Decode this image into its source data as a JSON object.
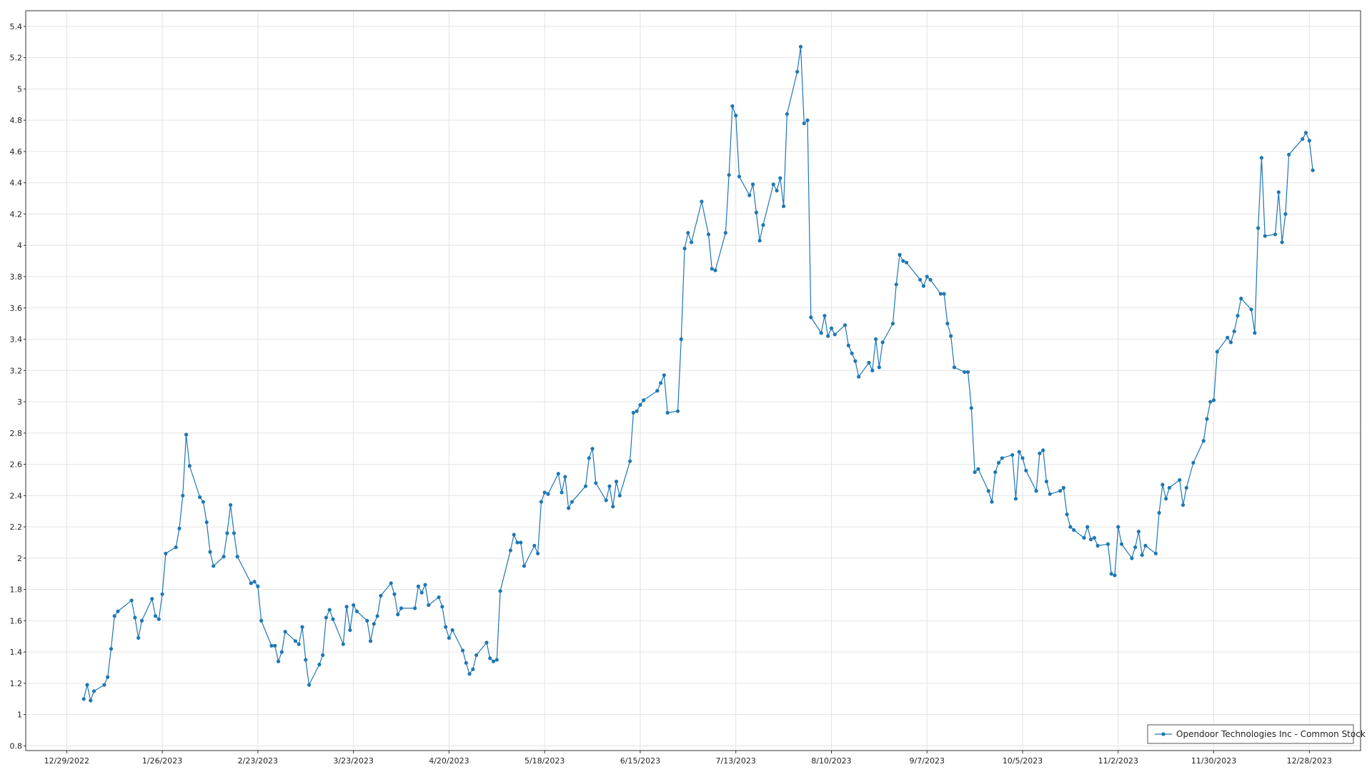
{
  "chart_data": {
    "type": "line",
    "title": "",
    "xlabel": "",
    "ylabel": "",
    "x_tick_labels": [
      "12/29/2022",
      "1/26/2023",
      "2/23/2023",
      "3/23/2023",
      "4/20/2023",
      "5/18/2023",
      "6/15/2023",
      "7/13/2023",
      "8/10/2023",
      "9/7/2023",
      "10/5/2023",
      "11/2/2023",
      "11/30/2023",
      "12/28/2023"
    ],
    "x_ticks": [
      "2022-12-29",
      "2023-01-26",
      "2023-02-23",
      "2023-03-23",
      "2023-04-20",
      "2023-05-18",
      "2023-06-15",
      "2023-07-13",
      "2023-08-10",
      "2023-09-07",
      "2023-10-05",
      "2023-11-02",
      "2023-11-30",
      "2023-12-28"
    ],
    "xlim": [
      "2022-12-17",
      "2024-01-12"
    ],
    "y_tick_labels": [
      "0.8",
      "1",
      "1.2",
      "1.4",
      "1.6",
      "1.8",
      "2",
      "2.2",
      "2.4",
      "2.6",
      "2.8",
      "3",
      "3.2",
      "3.4",
      "3.6",
      "3.8",
      "4",
      "4.2",
      "4.4",
      "4.6",
      "4.8",
      "5",
      "5.2",
      "5.4"
    ],
    "ylim": [
      0.77,
      5.5
    ],
    "grid": true,
    "legend": "bottom-right",
    "series": [
      {
        "name": "Opendoor Technologies Inc  - Common Stock",
        "color": "#1f77b4",
        "points": [
          [
            "2023-01-03",
            1.1
          ],
          [
            "2023-01-04",
            1.19
          ],
          [
            "2023-01-05",
            1.09
          ],
          [
            "2023-01-06",
            1.15
          ],
          [
            "2023-01-09",
            1.19
          ],
          [
            "2023-01-10",
            1.24
          ],
          [
            "2023-01-11",
            1.42
          ],
          [
            "2023-01-12",
            1.63
          ],
          [
            "2023-01-13",
            1.66
          ],
          [
            "2023-01-17",
            1.73
          ],
          [
            "2023-01-18",
            1.62
          ],
          [
            "2023-01-19",
            1.49
          ],
          [
            "2023-01-20",
            1.6
          ],
          [
            "2023-01-23",
            1.74
          ],
          [
            "2023-01-24",
            1.63
          ],
          [
            "2023-01-25",
            1.61
          ],
          [
            "2023-01-26",
            1.77
          ],
          [
            "2023-01-27",
            2.03
          ],
          [
            "2023-01-30",
            2.07
          ],
          [
            "2023-01-31",
            2.19
          ],
          [
            "2023-02-01",
            2.4
          ],
          [
            "2023-02-02",
            2.79
          ],
          [
            "2023-02-03",
            2.59
          ],
          [
            "2023-02-06",
            2.39
          ],
          [
            "2023-02-07",
            2.36
          ],
          [
            "2023-02-08",
            2.23
          ],
          [
            "2023-02-09",
            2.04
          ],
          [
            "2023-02-10",
            1.95
          ],
          [
            "2023-02-13",
            2.01
          ],
          [
            "2023-02-14",
            2.16
          ],
          [
            "2023-02-15",
            2.34
          ],
          [
            "2023-02-16",
            2.16
          ],
          [
            "2023-02-17",
            2.01
          ],
          [
            "2023-02-21",
            1.84
          ],
          [
            "2023-02-22",
            1.85
          ],
          [
            "2023-02-23",
            1.82
          ],
          [
            "2023-02-24",
            1.6
          ],
          [
            "2023-02-27",
            1.44
          ],
          [
            "2023-02-28",
            1.44
          ],
          [
            "2023-03-01",
            1.34
          ],
          [
            "2023-03-02",
            1.4
          ],
          [
            "2023-03-03",
            1.53
          ],
          [
            "2023-03-06",
            1.47
          ],
          [
            "2023-03-07",
            1.45
          ],
          [
            "2023-03-08",
            1.56
          ],
          [
            "2023-03-09",
            1.35
          ],
          [
            "2023-03-10",
            1.19
          ],
          [
            "2023-03-13",
            1.32
          ],
          [
            "2023-03-14",
            1.38
          ],
          [
            "2023-03-15",
            1.62
          ],
          [
            "2023-03-16",
            1.67
          ],
          [
            "2023-03-17",
            1.61
          ],
          [
            "2023-03-20",
            1.45
          ],
          [
            "2023-03-21",
            1.69
          ],
          [
            "2023-03-22",
            1.54
          ],
          [
            "2023-03-23",
            1.7
          ],
          [
            "2023-03-24",
            1.66
          ],
          [
            "2023-03-27",
            1.6
          ],
          [
            "2023-03-28",
            1.47
          ],
          [
            "2023-03-29",
            1.58
          ],
          [
            "2023-03-30",
            1.63
          ],
          [
            "2023-03-31",
            1.76
          ],
          [
            "2023-04-03",
            1.84
          ],
          [
            "2023-04-04",
            1.77
          ],
          [
            "2023-04-05",
            1.64
          ],
          [
            "2023-04-06",
            1.68
          ],
          [
            "2023-04-10",
            1.68
          ],
          [
            "2023-04-11",
            1.82
          ],
          [
            "2023-04-12",
            1.78
          ],
          [
            "2023-04-13",
            1.83
          ],
          [
            "2023-04-14",
            1.7
          ],
          [
            "2023-04-17",
            1.75
          ],
          [
            "2023-04-18",
            1.69
          ],
          [
            "2023-04-19",
            1.56
          ],
          [
            "2023-04-20",
            1.49
          ],
          [
            "2023-04-21",
            1.54
          ],
          [
            "2023-04-24",
            1.41
          ],
          [
            "2023-04-25",
            1.33
          ],
          [
            "2023-04-26",
            1.26
          ],
          [
            "2023-04-27",
            1.29
          ],
          [
            "2023-04-28",
            1.38
          ],
          [
            "2023-05-01",
            1.46
          ],
          [
            "2023-05-02",
            1.36
          ],
          [
            "2023-05-03",
            1.34
          ],
          [
            "2023-05-04",
            1.35
          ],
          [
            "2023-05-05",
            1.79
          ],
          [
            "2023-05-08",
            2.05
          ],
          [
            "2023-05-09",
            2.15
          ],
          [
            "2023-05-10",
            2.1
          ],
          [
            "2023-05-11",
            2.1
          ],
          [
            "2023-05-12",
            1.95
          ],
          [
            "2023-05-15",
            2.08
          ],
          [
            "2023-05-16",
            2.03
          ],
          [
            "2023-05-17",
            2.36
          ],
          [
            "2023-05-18",
            2.42
          ],
          [
            "2023-05-19",
            2.41
          ],
          [
            "2023-05-22",
            2.54
          ],
          [
            "2023-05-23",
            2.42
          ],
          [
            "2023-05-24",
            2.52
          ],
          [
            "2023-05-25",
            2.32
          ],
          [
            "2023-05-26",
            2.36
          ],
          [
            "2023-05-30",
            2.46
          ],
          [
            "2023-05-31",
            2.64
          ],
          [
            "2023-06-01",
            2.7
          ],
          [
            "2023-06-02",
            2.48
          ],
          [
            "2023-06-05",
            2.37
          ],
          [
            "2023-06-06",
            2.46
          ],
          [
            "2023-06-07",
            2.33
          ],
          [
            "2023-06-08",
            2.49
          ],
          [
            "2023-06-09",
            2.4
          ],
          [
            "2023-06-12",
            2.62
          ],
          [
            "2023-06-13",
            2.93
          ],
          [
            "2023-06-14",
            2.94
          ],
          [
            "2023-06-15",
            2.98
          ],
          [
            "2023-06-16",
            3.01
          ],
          [
            "2023-06-20",
            3.07
          ],
          [
            "2023-06-21",
            3.12
          ],
          [
            "2023-06-22",
            3.17
          ],
          [
            "2023-06-23",
            2.93
          ],
          [
            "2023-06-26",
            2.94
          ],
          [
            "2023-06-27",
            3.4
          ],
          [
            "2023-06-28",
            3.98
          ],
          [
            "2023-06-29",
            4.08
          ],
          [
            "2023-06-30",
            4.02
          ],
          [
            "2023-07-03",
            4.28
          ],
          [
            "2023-07-05",
            4.07
          ],
          [
            "2023-07-06",
            3.85
          ],
          [
            "2023-07-07",
            3.84
          ],
          [
            "2023-07-10",
            4.08
          ],
          [
            "2023-07-11",
            4.45
          ],
          [
            "2023-07-12",
            4.89
          ],
          [
            "2023-07-13",
            4.83
          ],
          [
            "2023-07-14",
            4.44
          ],
          [
            "2023-07-17",
            4.32
          ],
          [
            "2023-07-18",
            4.39
          ],
          [
            "2023-07-19",
            4.21
          ],
          [
            "2023-07-20",
            4.03
          ],
          [
            "2023-07-21",
            4.13
          ],
          [
            "2023-07-24",
            4.39
          ],
          [
            "2023-07-25",
            4.35
          ],
          [
            "2023-07-26",
            4.43
          ],
          [
            "2023-07-27",
            4.25
          ],
          [
            "2023-07-28",
            4.84
          ],
          [
            "2023-07-31",
            5.11
          ],
          [
            "2023-08-01",
            5.27
          ],
          [
            "2023-08-02",
            4.78
          ],
          [
            "2023-08-03",
            4.8
          ],
          [
            "2023-08-04",
            3.54
          ],
          [
            "2023-08-07",
            3.44
          ],
          [
            "2023-08-08",
            3.55
          ],
          [
            "2023-08-09",
            3.42
          ],
          [
            "2023-08-10",
            3.47
          ],
          [
            "2023-08-11",
            3.43
          ],
          [
            "2023-08-14",
            3.49
          ],
          [
            "2023-08-15",
            3.36
          ],
          [
            "2023-08-16",
            3.31
          ],
          [
            "2023-08-17",
            3.26
          ],
          [
            "2023-08-18",
            3.16
          ],
          [
            "2023-08-21",
            3.25
          ],
          [
            "2023-08-22",
            3.2
          ],
          [
            "2023-08-23",
            3.4
          ],
          [
            "2023-08-24",
            3.22
          ],
          [
            "2023-08-25",
            3.38
          ],
          [
            "2023-08-28",
            3.5
          ],
          [
            "2023-08-29",
            3.75
          ],
          [
            "2023-08-30",
            3.94
          ],
          [
            "2023-08-31",
            3.9
          ],
          [
            "2023-09-01",
            3.89
          ],
          [
            "2023-09-05",
            3.78
          ],
          [
            "2023-09-06",
            3.74
          ],
          [
            "2023-09-07",
            3.8
          ],
          [
            "2023-09-08",
            3.78
          ],
          [
            "2023-09-11",
            3.69
          ],
          [
            "2023-09-12",
            3.69
          ],
          [
            "2023-09-13",
            3.5
          ],
          [
            "2023-09-14",
            3.42
          ],
          [
            "2023-09-15",
            3.22
          ],
          [
            "2023-09-18",
            3.19
          ],
          [
            "2023-09-19",
            3.19
          ],
          [
            "2023-09-20",
            2.96
          ],
          [
            "2023-09-21",
            2.55
          ],
          [
            "2023-09-22",
            2.57
          ],
          [
            "2023-09-25",
            2.43
          ],
          [
            "2023-09-26",
            2.36
          ],
          [
            "2023-09-27",
            2.55
          ],
          [
            "2023-09-28",
            2.61
          ],
          [
            "2023-09-29",
            2.64
          ],
          [
            "2023-10-02",
            2.66
          ],
          [
            "2023-10-03",
            2.38
          ],
          [
            "2023-10-04",
            2.68
          ],
          [
            "2023-10-05",
            2.64
          ],
          [
            "2023-10-06",
            2.56
          ],
          [
            "2023-10-09",
            2.43
          ],
          [
            "2023-10-10",
            2.67
          ],
          [
            "2023-10-11",
            2.69
          ],
          [
            "2023-10-12",
            2.49
          ],
          [
            "2023-10-13",
            2.41
          ],
          [
            "2023-10-16",
            2.43
          ],
          [
            "2023-10-17",
            2.45
          ],
          [
            "2023-10-18",
            2.28
          ],
          [
            "2023-10-19",
            2.2
          ],
          [
            "2023-10-20",
            2.18
          ],
          [
            "2023-10-23",
            2.13
          ],
          [
            "2023-10-24",
            2.2
          ],
          [
            "2023-10-25",
            2.12
          ],
          [
            "2023-10-26",
            2.13
          ],
          [
            "2023-10-27",
            2.08
          ],
          [
            "2023-10-30",
            2.09
          ],
          [
            "2023-10-31",
            1.9
          ],
          [
            "2023-11-01",
            1.89
          ],
          [
            "2023-11-02",
            2.2
          ],
          [
            "2023-11-03",
            2.09
          ],
          [
            "2023-11-06",
            2.0
          ],
          [
            "2023-11-07",
            2.07
          ],
          [
            "2023-11-08",
            2.17
          ],
          [
            "2023-11-09",
            2.02
          ],
          [
            "2023-11-10",
            2.08
          ],
          [
            "2023-11-13",
            2.03
          ],
          [
            "2023-11-14",
            2.29
          ],
          [
            "2023-11-15",
            2.47
          ],
          [
            "2023-11-16",
            2.38
          ],
          [
            "2023-11-17",
            2.45
          ],
          [
            "2023-11-20",
            2.5
          ],
          [
            "2023-11-21",
            2.34
          ],
          [
            "2023-11-22",
            2.45
          ],
          [
            "2023-11-24",
            2.61
          ],
          [
            "2023-11-27",
            2.75
          ],
          [
            "2023-11-28",
            2.89
          ],
          [
            "2023-11-29",
            3.0
          ],
          [
            "2023-11-30",
            3.01
          ],
          [
            "2023-12-01",
            3.32
          ],
          [
            "2023-12-04",
            3.41
          ],
          [
            "2023-12-05",
            3.38
          ],
          [
            "2023-12-06",
            3.45
          ],
          [
            "2023-12-07",
            3.55
          ],
          [
            "2023-12-08",
            3.66
          ],
          [
            "2023-12-11",
            3.59
          ],
          [
            "2023-12-12",
            3.44
          ],
          [
            "2023-12-13",
            4.11
          ],
          [
            "2023-12-14",
            4.56
          ],
          [
            "2023-12-15",
            4.06
          ],
          [
            "2023-12-18",
            4.07
          ],
          [
            "2023-12-19",
            4.34
          ],
          [
            "2023-12-20",
            4.02
          ],
          [
            "2023-12-21",
            4.2
          ],
          [
            "2023-12-22",
            4.58
          ],
          [
            "2023-12-26",
            4.68
          ],
          [
            "2023-12-27",
            4.72
          ],
          [
            "2023-12-28",
            4.67
          ],
          [
            "2023-12-29",
            4.48
          ]
        ]
      }
    ]
  }
}
